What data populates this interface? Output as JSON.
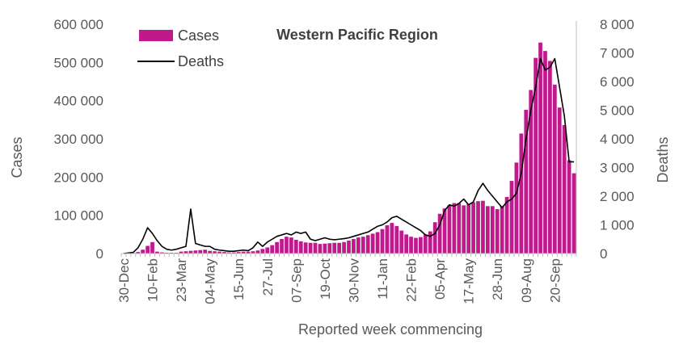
{
  "chart_data": {
    "type": "bar+line",
    "title": "Western Pacific Region",
    "xlabel": "Reported week commencing",
    "ylabel_left": "Cases",
    "ylabel_right": "Deaths",
    "ylim_left": [
      0,
      600000
    ],
    "ylim_right": [
      0,
      8000
    ],
    "yticks_left": [
      "0",
      "100 000",
      "200 000",
      "300 000",
      "400 000",
      "500 000",
      "600 000"
    ],
    "yticks_right": [
      "0",
      "1 000",
      "2 000",
      "3 000",
      "4 000",
      "5 000",
      "6 000",
      "7 000",
      "8 000"
    ],
    "tick_labels": [
      "30-Dec",
      "10-Feb",
      "23-Mar",
      "04-May",
      "15-Jun",
      "27-Jul",
      "07-Sep",
      "19-Oct",
      "30-Nov",
      "11-Jan",
      "22-Feb",
      "05-Apr",
      "17-May",
      "28-Jun",
      "09-Aug",
      "20-Sep"
    ],
    "tick_week_index": [
      0,
      6,
      12,
      18,
      24,
      30,
      36,
      42,
      48,
      54,
      60,
      66,
      72,
      78,
      84,
      90
    ],
    "grid": false,
    "legend": "top-left",
    "series": [
      {
        "name": "Cases",
        "type": "bar",
        "axis": "left",
        "color": "#c0198c",
        "values": [
          600,
          700,
          1500,
          4000,
          10000,
          20000,
          30000,
          5000,
          3000,
          2000,
          2000,
          2000,
          5000,
          6000,
          7000,
          8000,
          9000,
          10000,
          7000,
          6000,
          5000,
          4000,
          3000,
          3000,
          4000,
          5000,
          5000,
          6000,
          8000,
          12000,
          16000,
          22000,
          30000,
          38000,
          44000,
          42000,
          36000,
          32000,
          29000,
          28000,
          28000,
          25000,
          26000,
          27000,
          28000,
          28000,
          30000,
          34000,
          38000,
          42000,
          44000,
          48000,
          52000,
          56000,
          64000,
          74000,
          80000,
          72000,
          60000,
          50000,
          44000,
          41000,
          43000,
          50000,
          58000,
          82000,
          104000,
          118000,
          126000,
          132000,
          132000,
          126000,
          130000,
          134000,
          137000,
          138000,
          124000,
          124000,
          116000,
          124000,
          148000,
          190000,
          238000,
          314000,
          376000,
          428000,
          512000,
          552000,
          530000,
          504000,
          442000,
          382000,
          336000,
          244000,
          210000
        ]
      },
      {
        "name": "Deaths",
        "type": "line",
        "axis": "right",
        "color": "#000000",
        "values": [
          0,
          20,
          40,
          200,
          500,
          900,
          700,
          450,
          250,
          150,
          120,
          150,
          200,
          250,
          1550,
          350,
          300,
          250,
          250,
          150,
          120,
          100,
          80,
          80,
          100,
          120,
          100,
          200,
          400,
          250,
          400,
          500,
          600,
          650,
          700,
          650,
          750,
          700,
          750,
          500,
          450,
          500,
          550,
          500,
          480,
          500,
          520,
          550,
          600,
          650,
          700,
          750,
          850,
          950,
          1000,
          1100,
          1250,
          1300,
          1200,
          1100,
          1000,
          900,
          800,
          650,
          600,
          700,
          1000,
          1500,
          1700,
          1650,
          1750,
          1900,
          1700,
          1800,
          2200,
          2450,
          2200,
          2000,
          1800,
          1600,
          1800,
          1900,
          2100,
          2800,
          4000,
          5000,
          5800,
          6800,
          6400,
          6500,
          6800,
          5800,
          4800,
          3200,
          3200
        ]
      }
    ]
  }
}
